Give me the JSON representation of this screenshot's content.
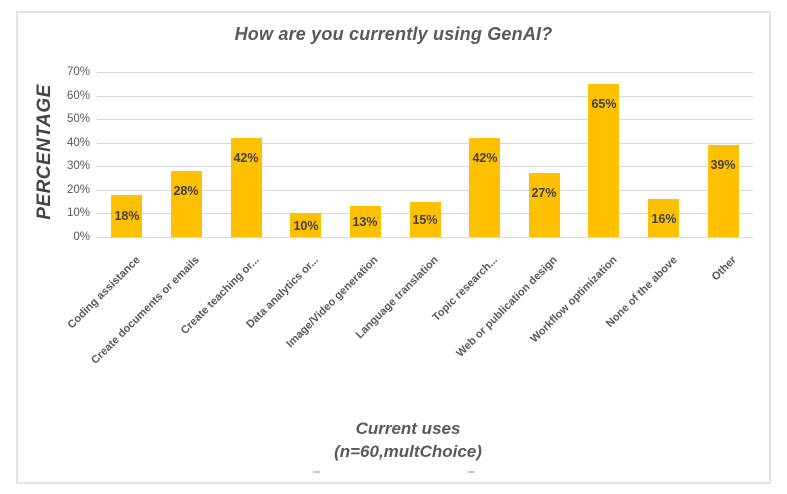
{
  "chart_data": {
    "type": "bar",
    "title": "How are you currently using GenAI?",
    "categories": [
      "Coding assistance",
      "Create documents or emails",
      "Create teaching or...",
      "Data analytics or...",
      "Image/Video generation",
      "Language translation",
      "Topic research...",
      "Web or publication design",
      "Workflow optimization",
      "None of the above",
      "Other"
    ],
    "values": [
      18,
      28,
      42,
      10,
      13,
      15,
      42,
      27,
      65,
      16,
      39
    ],
    "data_labels": [
      "18%",
      "28%",
      "42%",
      "10%",
      "13%",
      "15%",
      "42%",
      "27%",
      "65%",
      "16%",
      "39%"
    ],
    "y_ticks": [
      "0%",
      "10%",
      "20%",
      "30%",
      "40%",
      "50%",
      "60%",
      "70%"
    ],
    "ylim": [
      0,
      70
    ],
    "ylabel": "PERCENTAGE",
    "xlabel_line1": "Current uses",
    "xlabel_line2": "(n=60,multChoice)",
    "grid": true,
    "legend_position": "none",
    "colors": {
      "bar": "#ffc000",
      "title": "#595959",
      "y_axis_title": "#444444",
      "data_label": "#404040",
      "tick_label": "#595959",
      "category_label": "#595959",
      "gridline": "#d9d9d9",
      "frame_border": "#e4e4e4"
    }
  }
}
